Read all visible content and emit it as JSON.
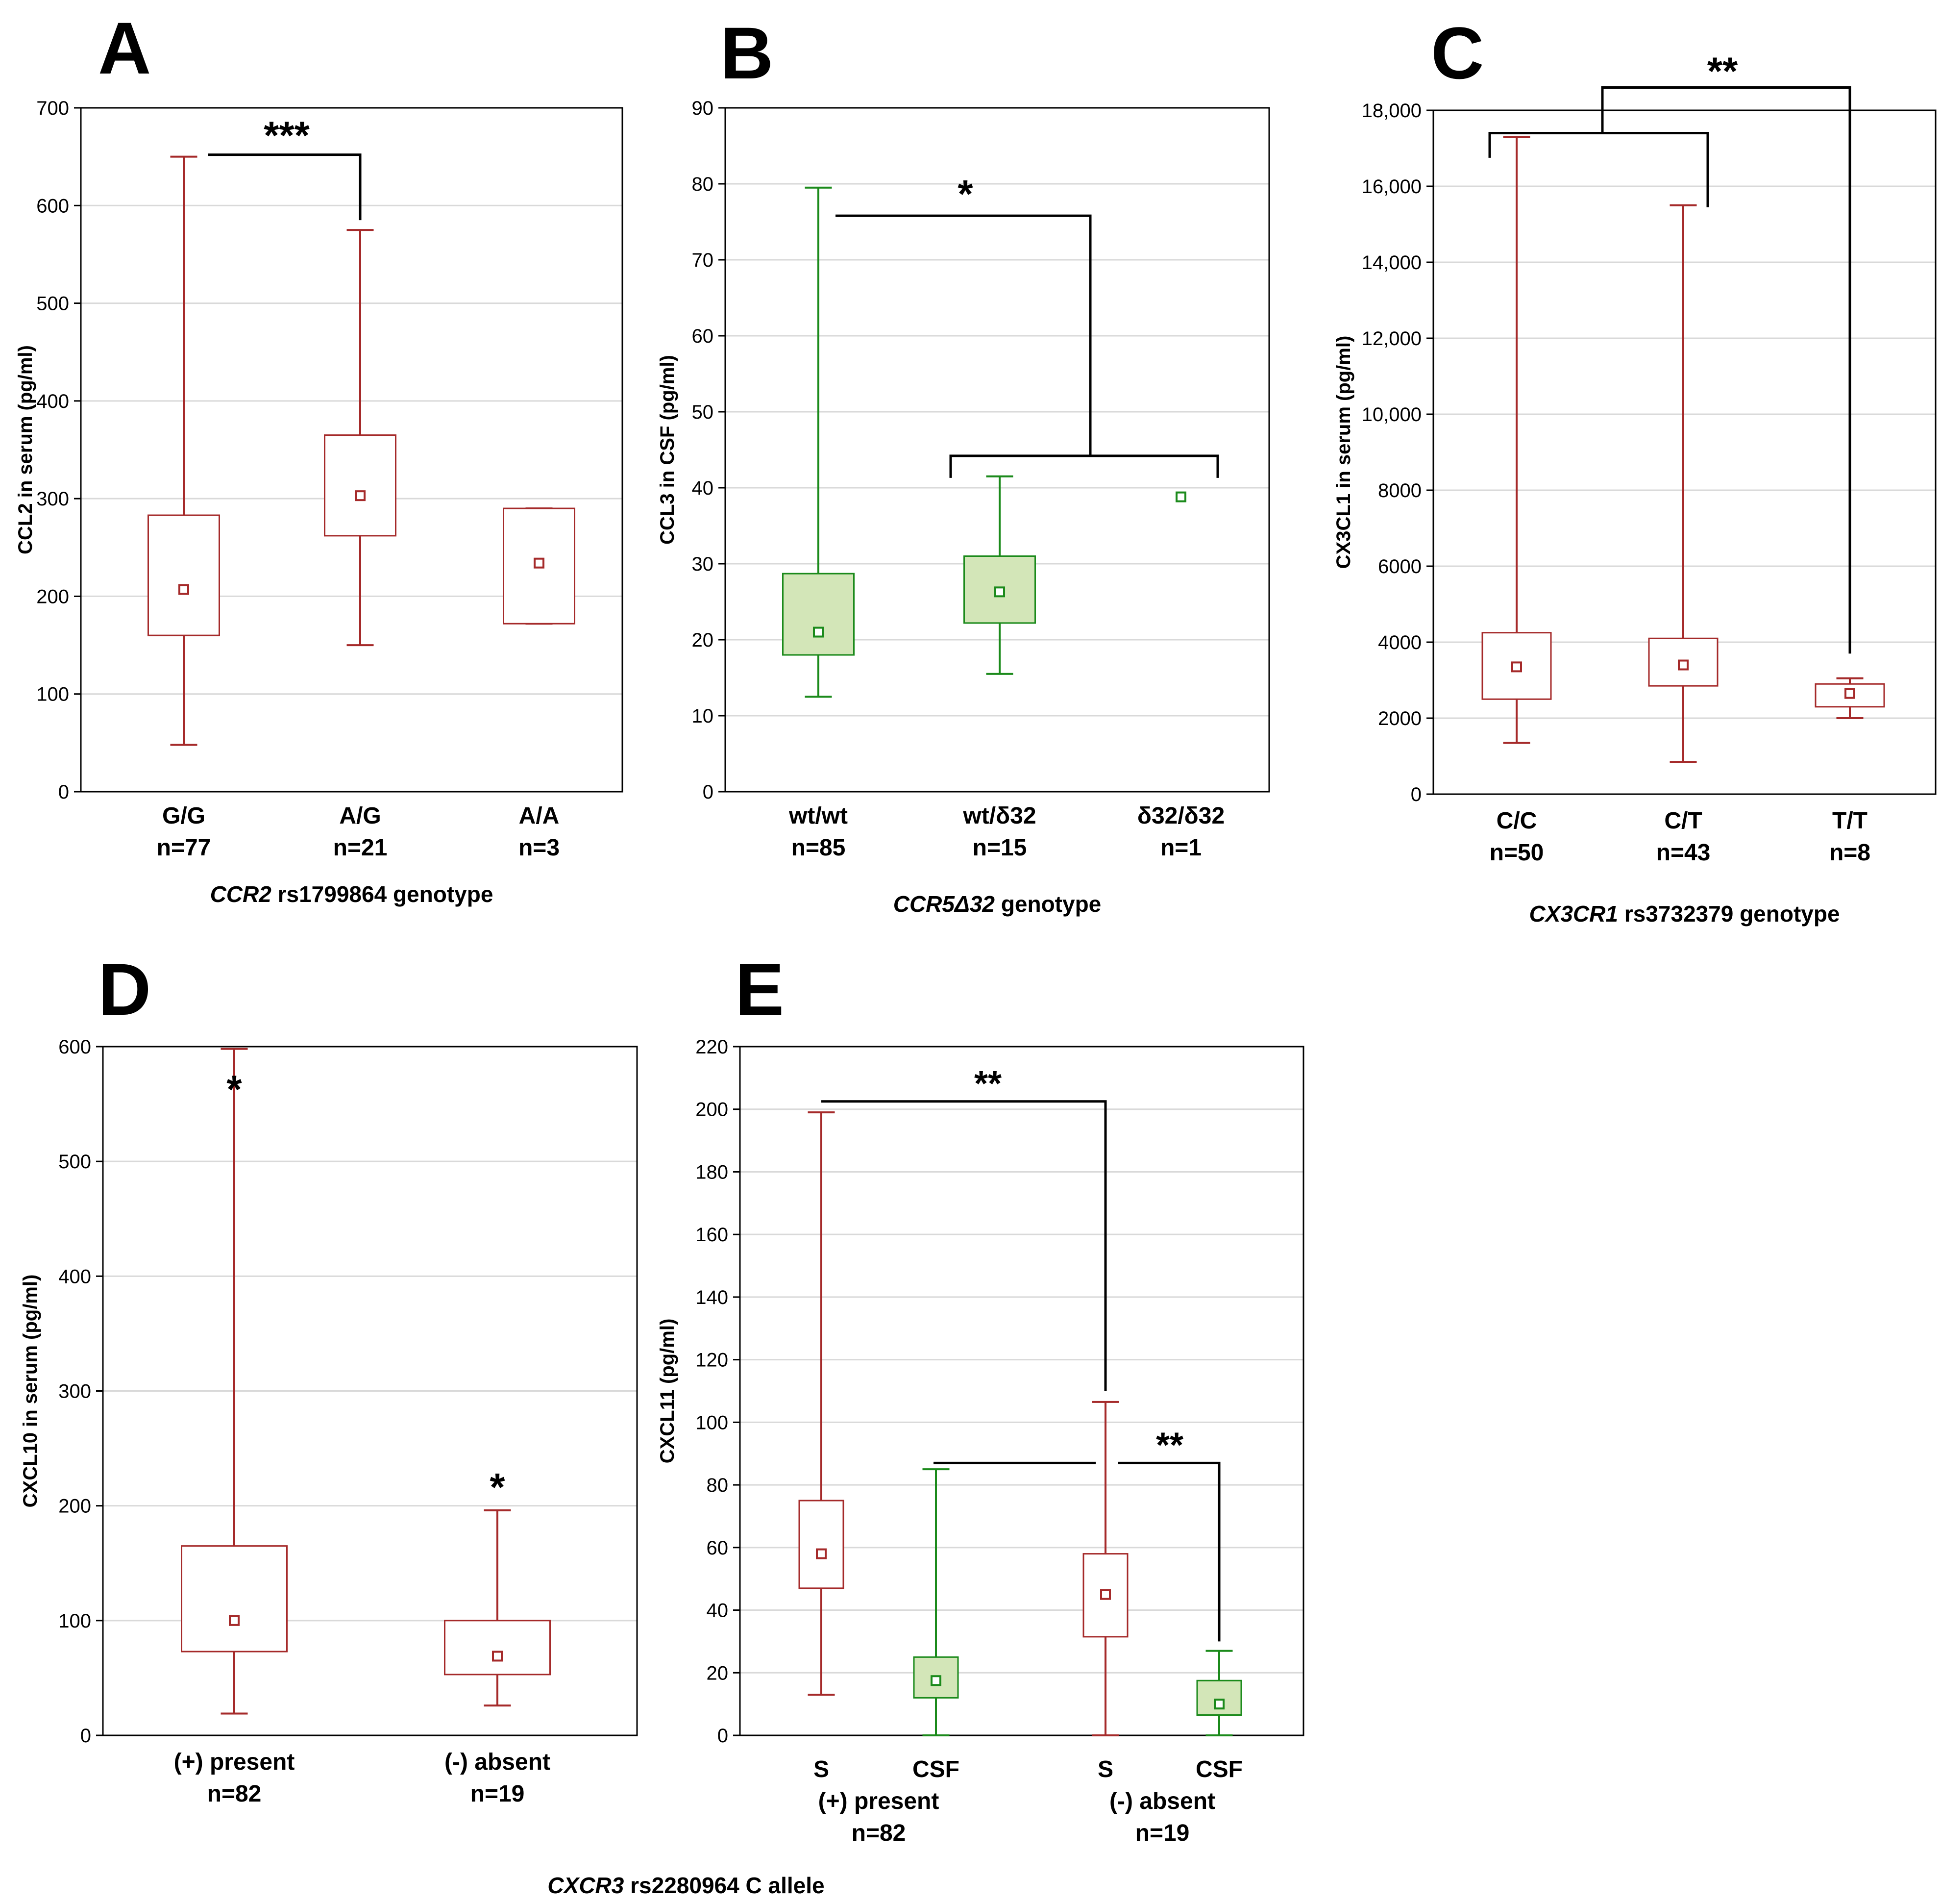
{
  "colors": {
    "serum": "#a52a2a",
    "csf": "#1b8a1b",
    "csf_fill": "#d3e6b8",
    "grid": "#d9d9d9",
    "axis": "#000000"
  },
  "footer_label": {
    "italic": "CXCR3",
    "rest": " rs2280964 C allele"
  },
  "chart_data": [
    {
      "panel": "A",
      "type": "box",
      "ylabel": "CCL2 in serum (pg/ml)",
      "ylim": [
        0,
        700
      ],
      "yticks": [
        0,
        100,
        200,
        300,
        400,
        500,
        600,
        700
      ],
      "ytick_labels": [
        "0",
        "100",
        "200",
        "300",
        "400",
        "500",
        "600",
        "700"
      ],
      "xlabel_italic": "CCR2",
      "xlabel_rest": " rs1799864 genotype",
      "groups": [
        {
          "label": "G/G",
          "n": "n=77",
          "color": "serum",
          "min": 48,
          "q1": 160,
          "median": 207,
          "q3": 283,
          "max": 650
        },
        {
          "label": "A/G",
          "n": "n=21",
          "color": "serum",
          "min": 150,
          "q1": 262,
          "median": 303,
          "q3": 365,
          "max": 575
        },
        {
          "label": "A/A",
          "n": "n=3",
          "color": "serum",
          "min": 172,
          "q1": 172,
          "median": 234,
          "q3": 290,
          "max": 290
        }
      ],
      "significance": [
        {
          "from": "G/G",
          "to": "A/G",
          "label": "***",
          "y_value": 652
        }
      ]
    },
    {
      "panel": "B",
      "type": "box",
      "ylabel": "CCL3 in CSF (pg/ml)",
      "ylim": [
        0,
        90
      ],
      "yticks": [
        0,
        10,
        20,
        30,
        40,
        50,
        60,
        70,
        80,
        90
      ],
      "ytick_labels": [
        "0",
        "10",
        "20",
        "30",
        "40",
        "50",
        "60",
        "70",
        "80",
        "90"
      ],
      "xlabel_italic": "CCR5Δ32",
      "xlabel_rest": " genotype",
      "groups": [
        {
          "label": "wt/wt",
          "n": "n=85",
          "color": "csf",
          "min": 12.5,
          "q1": 18,
          "median": 21,
          "q3": 28.7,
          "max": 79.5
        },
        {
          "label": "wt/δ32",
          "n": "n=15",
          "color": "csf",
          "min": 15.5,
          "q1": 22.2,
          "median": 26.3,
          "q3": 31,
          "max": 41.5
        },
        {
          "label": "δ32/δ32",
          "n": "n=1",
          "color": "csf",
          "min": null,
          "q1": null,
          "median": 38.8,
          "q3": null,
          "max": null
        }
      ],
      "significance": [
        {
          "from": "wt/wt",
          "to": "wt/δ32 + δ32/δ32",
          "label": "*",
          "y_value": 76
        }
      ]
    },
    {
      "panel": "C",
      "type": "box",
      "ylabel": "CX3CL1  in serum (pg/ml)",
      "ylim": [
        0,
        18000
      ],
      "yticks": [
        0,
        2000,
        4000,
        6000,
        8000,
        10000,
        12000,
        14000,
        16000,
        18000
      ],
      "ytick_labels": [
        "0",
        "2000",
        "4000",
        "6000",
        "8000",
        "10,000",
        "12,000",
        "14,000",
        "16,000",
        "18,000"
      ],
      "xlabel_italic": "CX3CR1",
      "xlabel_rest": " rs3732379 genotype",
      "groups": [
        {
          "label": "C/C",
          "n": "n=50",
          "color": "serum",
          "min": 1350,
          "q1": 2500,
          "median": 3350,
          "q3": 4250,
          "max": 17300
        },
        {
          "label": "C/T",
          "n": "n=43",
          "color": "serum",
          "min": 850,
          "q1": 2850,
          "median": 3400,
          "q3": 4100,
          "max": 15500
        },
        {
          "label": "T/T",
          "n": "n=8",
          "color": "serum",
          "min": 2000,
          "q1": 2300,
          "median": 2650,
          "q3": 2900,
          "max": 3050
        }
      ],
      "significance": [
        {
          "from": "C/C + C/T",
          "to": "T/T",
          "label": "**",
          "y_value": 18400
        }
      ]
    },
    {
      "panel": "D",
      "type": "box",
      "ylabel": "CXCL10 in serum (pg/ml)",
      "ylim": [
        0,
        600
      ],
      "yticks": [
        0,
        100,
        200,
        300,
        400,
        500,
        600
      ],
      "ytick_labels": [
        "0",
        "100",
        "200",
        "300",
        "400",
        "500",
        "600"
      ],
      "groups": [
        {
          "label": "(+) present",
          "n": "n=82",
          "color": "serum",
          "min": 19,
          "q1": 73,
          "median": 100,
          "q3": 165,
          "max": 598
        },
        {
          "label": "(-) absent",
          "n": "n=19",
          "color": "serum",
          "min": 26,
          "q1": 53,
          "median": 69,
          "q3": 100,
          "max": 196
        }
      ],
      "significance": [
        {
          "group": "(+) present",
          "label": "*"
        },
        {
          "group": "(-) absent",
          "label": "*"
        }
      ]
    },
    {
      "panel": "E",
      "type": "box",
      "ylabel": "CXCL11 (pg/ml)",
      "ylim": [
        0,
        220
      ],
      "yticks": [
        0,
        20,
        40,
        60,
        80,
        100,
        120,
        140,
        160,
        180,
        200,
        220
      ],
      "ytick_labels": [
        "0",
        "20",
        "40",
        "60",
        "80",
        "100",
        "120",
        "140",
        "160",
        "180",
        "200",
        "220"
      ],
      "groups": [
        {
          "label": "S",
          "color": "serum",
          "min": 13,
          "q1": 47,
          "median": 58,
          "q3": 75,
          "max": 199
        },
        {
          "label": "CSF",
          "color": "csf",
          "min": 0,
          "q1": 12,
          "median": 17.5,
          "q3": 25,
          "max": 85
        },
        {
          "label": "S",
          "color": "serum",
          "min": 0,
          "q1": 31.5,
          "median": 45,
          "q3": 58,
          "max": 106.5
        },
        {
          "label": "CSF",
          "color": "csf",
          "min": 0,
          "q1": 6.5,
          "median": 10,
          "q3": 17.5,
          "max": 27
        }
      ],
      "group_labels": [
        {
          "label": "(+) present",
          "n": "n=82"
        },
        {
          "label": "(-) absent",
          "n": "n=19"
        }
      ],
      "significance": [
        {
          "from": 0,
          "to": 2,
          "label": "**",
          "y_value": 202
        },
        {
          "from": 1,
          "to": 3,
          "label": "**",
          "y_value": 87
        }
      ]
    }
  ]
}
